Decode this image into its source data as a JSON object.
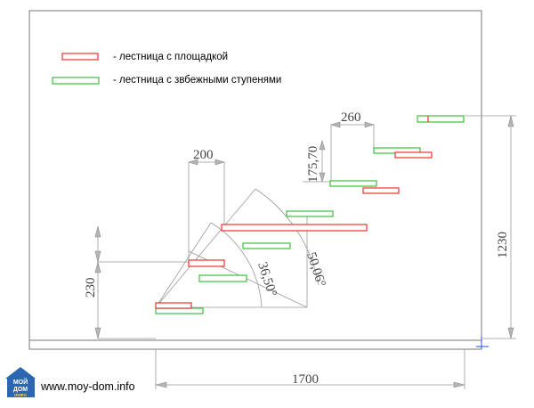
{
  "legend": {
    "landing_stair": "- лестница с площадкой",
    "winder_stair": "- лестница с звбежными ступенями"
  },
  "colors": {
    "landing": "#e8342e",
    "winder": "#3cbd3c",
    "dimension": "#888888",
    "frame": "#777777",
    "logo": "#2a67b0"
  },
  "dimensions": {
    "tread_top": "260",
    "riser_height": "175,70",
    "tread_mid": "200",
    "left_height": "230",
    "angle_inner": "36,50°",
    "angle_outer": "50,06°",
    "total_height": "1230",
    "total_length": "1700"
  },
  "footer": {
    "logo_line1": "МОЙ",
    "logo_line2": "ДОМ",
    "logo_line3": "ИНФО",
    "site_url": "www.moy-dom.info"
  }
}
